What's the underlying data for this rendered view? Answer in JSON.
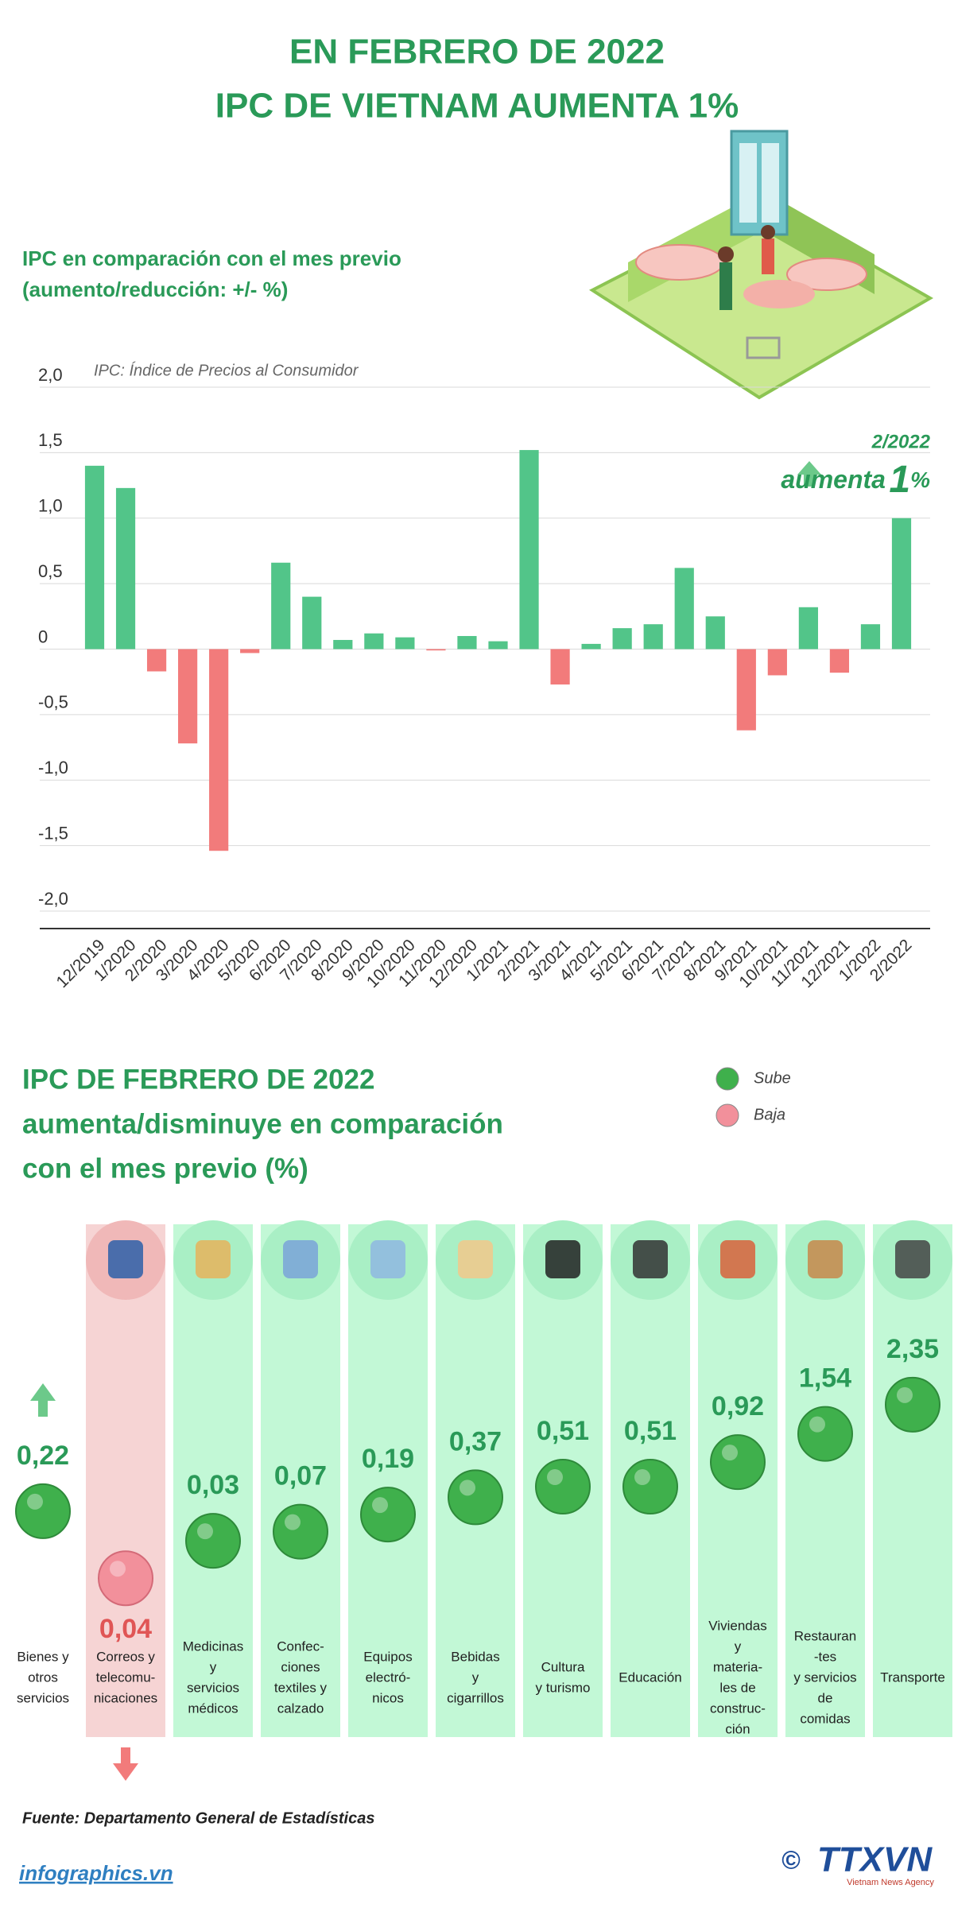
{
  "header": {
    "title": [
      "EN FEBRERO DE 2022",
      "IPC DE VIETNAM AUMENTA 1%"
    ]
  },
  "chart_data": [
    {
      "type": "bar",
      "title": [
        "IPC en comparación con el mes previo",
        "(aumento/reducción: +/- %)"
      ],
      "note": "IPC: Índice de Precios al Consumidor",
      "annotation": {
        "date": "2/2022",
        "text": "aumenta",
        "number": "1",
        "unit": "%"
      },
      "categories": [
        "12/2019",
        "1/2020",
        "2/2020",
        "3/2020",
        "4/2020",
        "5/2020",
        "6/2020",
        "7/2020",
        "8/2020",
        "9/2020",
        "10/2020",
        "11/2020",
        "12/2020",
        "1/2021",
        "2/2021",
        "3/2021",
        "4/2021",
        "5/2021",
        "6/2021",
        "7/2021",
        "8/2021",
        "9/2021",
        "10/2021",
        "11/2021",
        "12/2021",
        "1/2022",
        "2/2022"
      ],
      "values": [
        1.4,
        1.23,
        -0.17,
        -0.72,
        -1.54,
        -0.03,
        0.66,
        0.4,
        0.07,
        0.12,
        0.09,
        -0.01,
        0.1,
        0.06,
        1.52,
        -0.27,
        0.04,
        0.16,
        0.19,
        0.62,
        0.25,
        -0.62,
        -0.2,
        0.32,
        -0.18,
        0.19,
        1.0
      ],
      "positive_color": "#52c589",
      "negative_color": "#f27b7b",
      "ylim": [
        -2,
        2
      ],
      "yticks": [
        {
          "value": -2,
          "label": "-2,0"
        },
        {
          "value": -1.5,
          "label": "-1,5"
        },
        {
          "value": -1,
          "label": "-1,0"
        },
        {
          "value": -0.5,
          "label": "-0,5"
        },
        0,
        {
          "value": 0.5,
          "label": "0,5"
        },
        {
          "value": 1,
          "label": "1,0"
        },
        {
          "value": 1.5,
          "label": "1,5"
        },
        {
          "value": 2,
          "label": "2,0"
        }
      ],
      "grid": true
    },
    {
      "type": "dot",
      "title": [
        "IPC DE FEBRERO DE 2022",
        "aumenta/disminuye en comparación",
        "con el mes previo (%)"
      ],
      "legend": [
        {
          "name": "Sube",
          "color": "#3fb04c"
        },
        {
          "name": "Baja",
          "color": "#f2909b"
        }
      ],
      "categories": [
        [
          "Bienes y",
          "otros",
          "servicios"
        ],
        [
          "Correos y",
          "telecomu-",
          "nicaciones"
        ],
        [
          "Medicinas",
          "y",
          "servicios",
          "médicos"
        ],
        [
          "Confec-",
          "ciones",
          "textiles y",
          "calzado"
        ],
        [
          "Equipos",
          "electró-",
          "nicos"
        ],
        [
          "Bebidas",
          "y",
          "cigarrillos"
        ],
        [
          "Cultura",
          "y turismo"
        ],
        [
          "Educación"
        ],
        [
          "Viviendas",
          "y",
          "materia-",
          "les de",
          "construc-",
          "ción"
        ],
        [
          "Restauran",
          "-tes",
          "y servicios",
          "de",
          "comidas"
        ],
        [
          "Transporte"
        ]
      ],
      "values": [
        0.22,
        -0.04,
        0.03,
        0.07,
        0.19,
        0.37,
        0.51,
        0.51,
        0.92,
        1.54,
        2.35
      ],
      "value_labels": [
        "0,22",
        "0,04",
        "0,03",
        "0,07",
        "0,19",
        "0,37",
        "0,51",
        "0,51",
        "0,92",
        "1,54",
        "2,35"
      ]
    }
  ],
  "footer": {
    "source": "Fuente: Departamento General de Estadísticas",
    "site": "infographics.vn",
    "copyright": "©",
    "logo": "TTXVN",
    "logo_sub": "Vietnam News Agency"
  }
}
